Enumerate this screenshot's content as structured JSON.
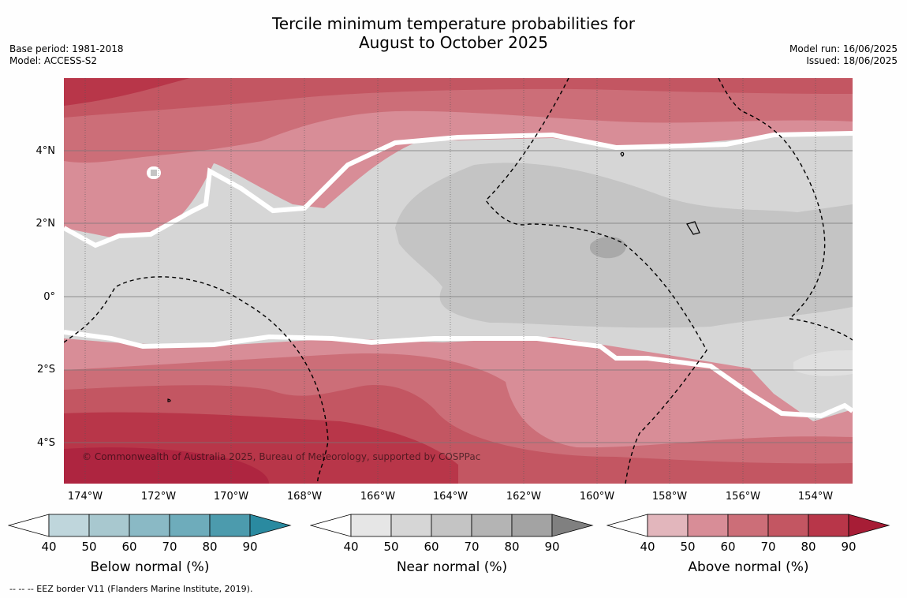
{
  "title_line1": "Tercile minimum temperature probabilities for",
  "title_line2": "August to October 2025",
  "base_period": "Base period: 1981-2018",
  "model": "Model: ACCESS-S2",
  "model_run": "Model run: 16/06/2025",
  "issued": "Issued: 18/06/2025",
  "copyright": "© Commonwealth of Australia 2025, Bureau of Meteorology, supported by COSPPac",
  "footnote": "--  --  -- EEZ border V11 (Flanders Marine Institute, 2019).",
  "lat_labels": [
    "4°N",
    "2°N",
    "0°",
    "2°S",
    "4°S"
  ],
  "lon_labels": [
    "174°W",
    "172°W",
    "170°W",
    "168°W",
    "166°W",
    "164°W",
    "162°W",
    "160°W",
    "158°W",
    "156°W",
    "154°W"
  ],
  "colorbars": [
    {
      "title": "Below normal (%)",
      "ticks": [
        "40",
        "50",
        "60",
        "70",
        "80",
        "90"
      ],
      "colors": [
        "#bfd6dc",
        "#a8c8cf",
        "#8ab9c5",
        "#6eacbb",
        "#4c9bad",
        "#2a8aa0"
      ]
    },
    {
      "title": "Near normal (%)",
      "ticks": [
        "40",
        "50",
        "60",
        "70",
        "80",
        "90"
      ],
      "colors": [
        "#e6e6e6",
        "#d6d6d6",
        "#c4c4c4",
        "#b4b4b4",
        "#a3a3a3",
        "#808080"
      ]
    },
    {
      "title": "Above normal (%)",
      "ticks": [
        "40",
        "50",
        "60",
        "70",
        "80",
        "90"
      ],
      "colors": [
        "#e2b6bc",
        "#d88d97",
        "#cc6e78",
        "#c35662",
        "#b83649",
        "#a71d36"
      ]
    }
  ],
  "colors": {
    "above_50": "#d88d97",
    "above_60": "#cc6e78",
    "above_70": "#c35662",
    "above_80": "#b83649",
    "near_40": "#d6d6d6",
    "near_50": "#c4c4c4",
    "near_60": "#a9a9a9"
  }
}
